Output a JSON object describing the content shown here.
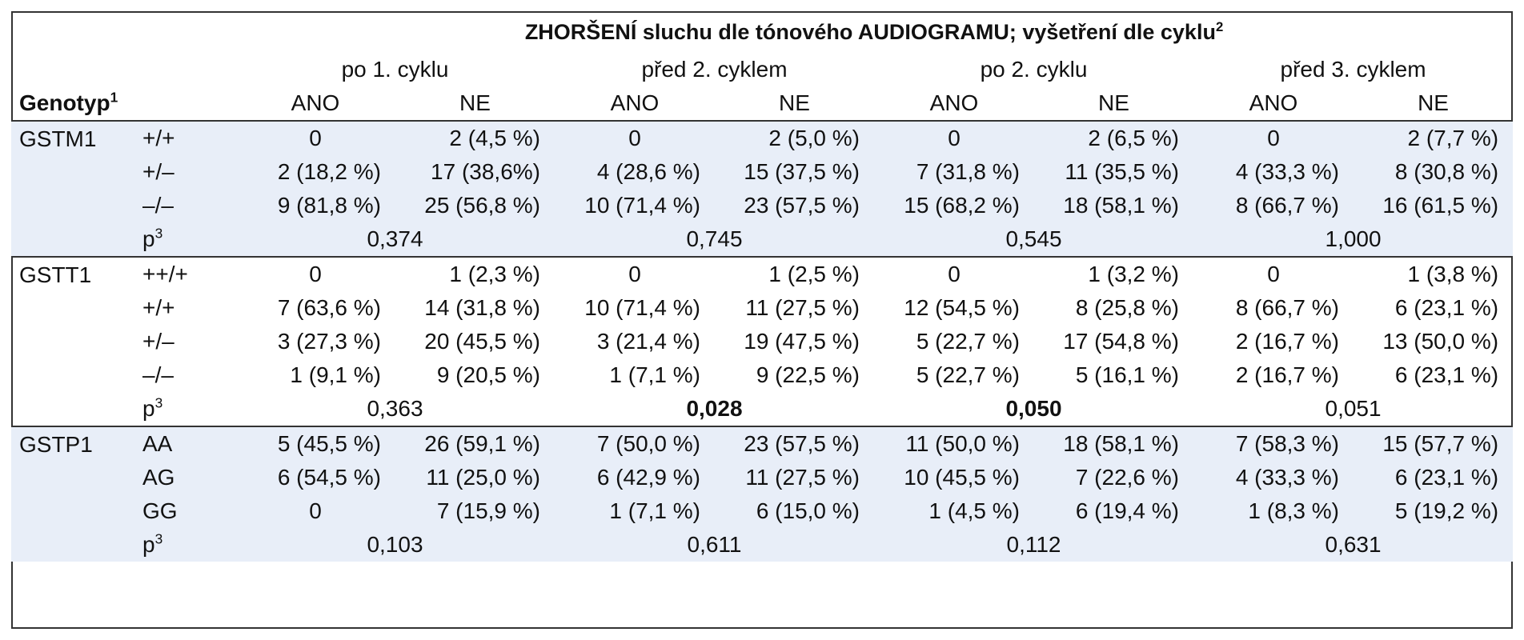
{
  "table": {
    "title": "ZHORŠENÍ sluchu dle tónového AUDIOGRAMU; vyšetření dle cyklu",
    "title_sup": "2",
    "cycles": [
      "po 1. cyklu",
      "před 2. cyklem",
      "po 2. cyklu",
      "před 3. cyklem"
    ],
    "genotype_header": "Genotyp",
    "genotype_sup": "1",
    "ano_label": "ANO",
    "ne_label": "NE",
    "p_label": "p",
    "p_sup": "3",
    "groups": [
      {
        "gene": "GSTM1",
        "shaded": true,
        "rows": [
          {
            "genotype": "+/+",
            "values": [
              "0",
              "2 (4,5 %)",
              "0",
              "2 (5,0 %)",
              "0",
              "2 (6,5 %)",
              "0",
              "2 (7,7 %)"
            ]
          },
          {
            "genotype": "+/–",
            "values": [
              "2 (18,2 %)",
              "17 (38,6%)",
              "4 (28,6 %)",
              "15 (37,5 %)",
              "7 (31,8 %)",
              "11 (35,5 %)",
              "4 (33,3 %)",
              "8 (30,8 %)"
            ]
          },
          {
            "genotype": "–/–",
            "values": [
              "9 (81,8 %)",
              "25 (56,8 %)",
              "10 (71,4 %)",
              "23 (57,5 %)",
              "15 (68,2 %)",
              "18 (58,1 %)",
              "8 (66,7 %)",
              "16 (61,5 %)"
            ]
          }
        ],
        "p_values": [
          "0,374",
          "0,745",
          "0,545",
          "1,000"
        ],
        "p_bold": [
          false,
          false,
          false,
          false
        ]
      },
      {
        "gene": "GSTT1",
        "shaded": false,
        "rows": [
          {
            "genotype": "++/+",
            "values": [
              "0",
              "1 (2,3 %)",
              "0",
              "1 (2,5 %)",
              "0",
              "1 (3,2 %)",
              "0",
              "1 (3,8 %)"
            ]
          },
          {
            "genotype": "+/+",
            "values": [
              "7 (63,6 %)",
              "14 (31,8 %)",
              "10 (71,4 %)",
              "11 (27,5 %)",
              "12 (54,5 %)",
              "8 (25,8 %)",
              "8 (66,7 %)",
              "6 (23,1 %)"
            ]
          },
          {
            "genotype": "+/–",
            "values": [
              "3 (27,3 %)",
              "20 (45,5 %)",
              "3 (21,4 %)",
              "19 (47,5 %)",
              "5 (22,7 %)",
              "17 (54,8 %)",
              "2 (16,7 %)",
              "13 (50,0 %)"
            ]
          },
          {
            "genotype": "–/–",
            "values": [
              "1 (9,1 %)",
              "9 (20,5 %)",
              "1 (7,1 %)",
              "9 (22,5 %)",
              "5 (22,7 %)",
              "5 (16,1 %)",
              "2 (16,7 %)",
              "6 (23,1 %)"
            ]
          }
        ],
        "p_values": [
          "0,363",
          "0,028",
          "0,050",
          "0,051"
        ],
        "p_bold": [
          false,
          true,
          true,
          false
        ]
      },
      {
        "gene": "GSTP1",
        "shaded": true,
        "rows": [
          {
            "genotype": "AA",
            "values": [
              "5 (45,5 %)",
              "26 (59,1 %)",
              "7 (50,0 %)",
              "23 (57,5 %)",
              "11 (50,0 %)",
              "18 (58,1 %)",
              "7 (58,3 %)",
              "15 (57,7 %)"
            ]
          },
          {
            "genotype": "AG",
            "values": [
              "6 (54,5 %)",
              "11 (25,0 %)",
              "6 (42,9 %)",
              "11 (27,5 %)",
              "10 (45,5 %)",
              "7 (22,6 %)",
              "4 (33,3 %)",
              "6 (23,1 %)"
            ]
          },
          {
            "genotype": "GG",
            "values": [
              "0",
              "7 (15,9 %)",
              "1 (7,1 %)",
              "6 (15,0 %)",
              "1 (4,5 %)",
              "6 (19,4 %)",
              "1 (8,3 %)",
              "5 (19,2 %)"
            ]
          }
        ],
        "p_values": [
          "0,103",
          "0,611",
          "0,112",
          "0,631"
        ],
        "p_bold": [
          false,
          false,
          false,
          false
        ]
      }
    ],
    "colors": {
      "shade": "#e8eef8",
      "border": "#333333",
      "text": "#111111"
    }
  }
}
